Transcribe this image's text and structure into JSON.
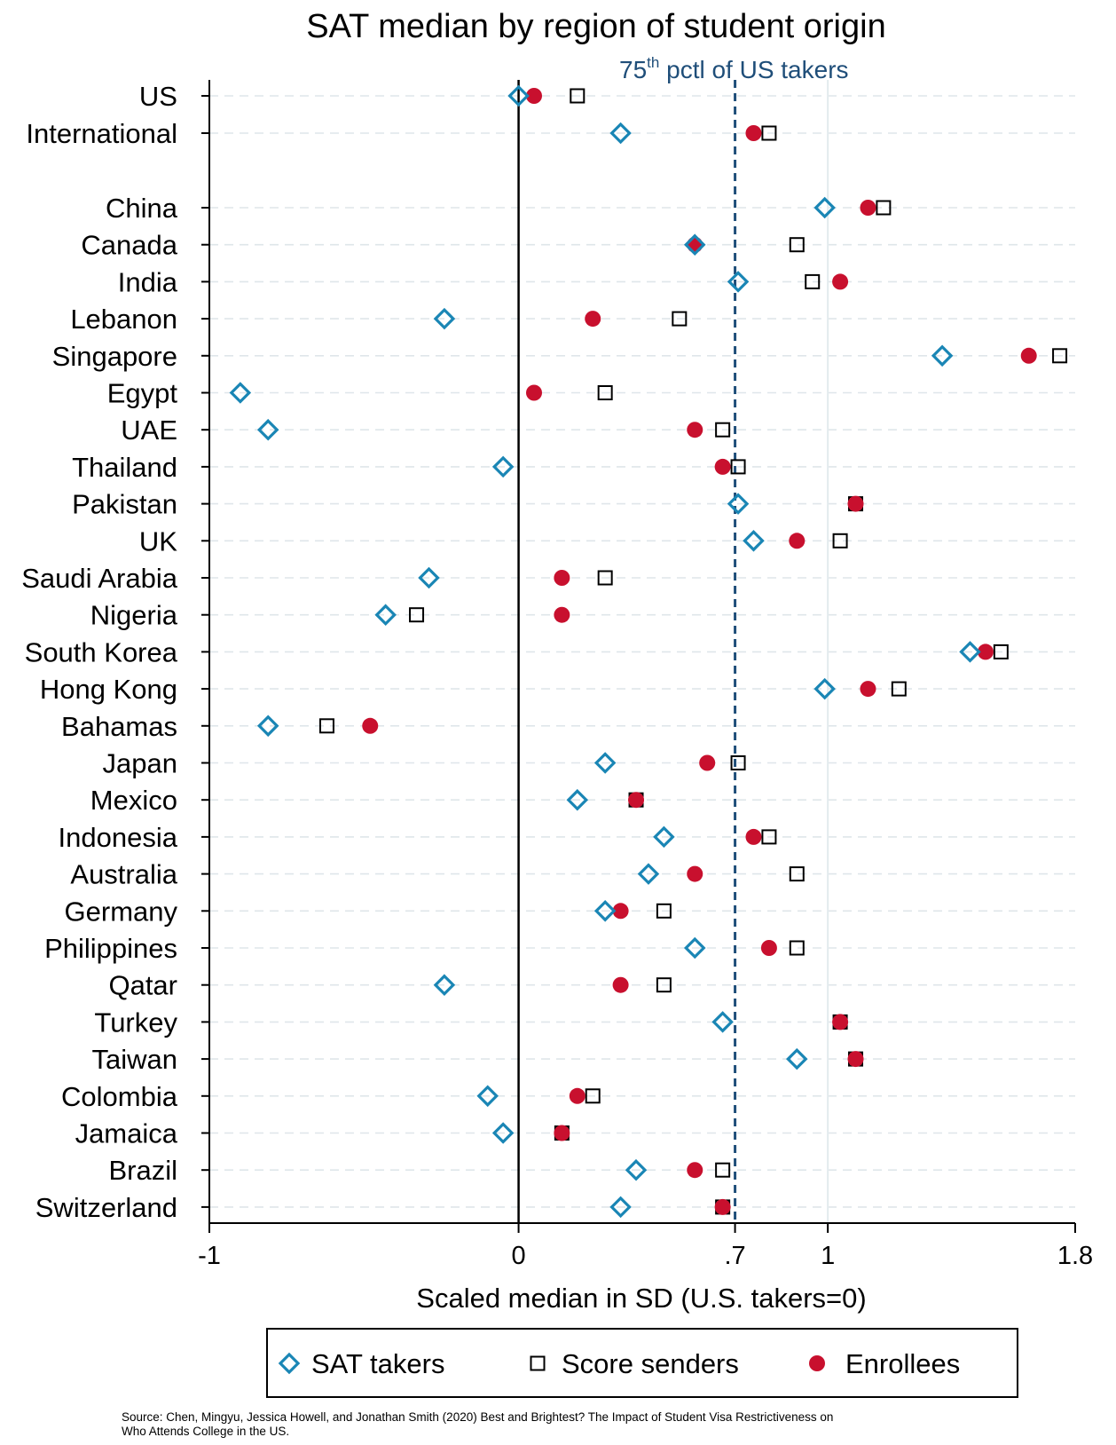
{
  "chart_data": {
    "type": "scatter",
    "orientation": "horizontal-dot-plot",
    "title": "SAT median by region of student origin",
    "xlabel": "Scaled median in SD (U.S. takers=0)",
    "xlim": [
      -1,
      1.8
    ],
    "x_ticks": [
      {
        "value": -1,
        "label": "-1"
      },
      {
        "value": 0,
        "label": "0"
      },
      {
        "value": 0.7,
        "label": ".7"
      },
      {
        "value": 1,
        "label": "1"
      },
      {
        "value": 1.8,
        "label": "1.8"
      }
    ],
    "reference_line": {
      "value": 0.7,
      "label_main": "75",
      "label_sup": "th",
      "label_rest": " pctl of US takers",
      "color": "#1f4e79"
    },
    "zero_line": 0,
    "colors": {
      "takers": "#1a86b5",
      "senders": "#000000",
      "enrollees": "#c8102e",
      "reference": "#1f4e79"
    },
    "categories": [
      "US",
      "International",
      "China",
      "Canada",
      "India",
      "Lebanon",
      "Singapore",
      "Egypt",
      "UAE",
      "Thailand",
      "Pakistan",
      "UK",
      "Saudi Arabia",
      "Nigeria",
      "South Korea",
      "Hong Kong",
      "Bahamas",
      "Japan",
      "Mexico",
      "Indonesia",
      "Australia",
      "Germany",
      "Philippines",
      "Qatar",
      "Turkey",
      "Taiwan",
      "Colombia",
      "Jamaica",
      "Brazil",
      "Switzerland"
    ],
    "series": [
      {
        "name": "SAT takers",
        "marker": "diamond",
        "values": [
          0,
          0.33,
          0.99,
          0.57,
          0.71,
          -0.24,
          1.37,
          -0.9,
          -0.81,
          -0.05,
          0.71,
          0.76,
          -0.29,
          -0.43,
          1.46,
          0.99,
          -0.81,
          0.28,
          0.19,
          0.47,
          0.42,
          0.28,
          0.57,
          -0.24,
          0.66,
          0.9,
          -0.1,
          -0.05,
          0.38,
          0.33
        ]
      },
      {
        "name": "Score senders",
        "marker": "square",
        "values": [
          0.19,
          0.81,
          1.18,
          0.9,
          0.95,
          0.52,
          1.75,
          0.28,
          0.66,
          0.71,
          1.09,
          1.04,
          0.28,
          -0.33,
          1.56,
          1.23,
          -0.62,
          0.71,
          0.38,
          0.81,
          0.9,
          0.47,
          0.9,
          0.47,
          1.04,
          1.09,
          0.24,
          0.14,
          0.66,
          0.66
        ]
      },
      {
        "name": "Enrollees",
        "marker": "circle",
        "values": [
          0.05,
          0.76,
          1.13,
          0.57,
          1.04,
          0.24,
          1.65,
          0.05,
          0.57,
          0.66,
          1.09,
          0.9,
          0.14,
          0.14,
          1.51,
          1.13,
          -0.48,
          0.61,
          0.38,
          0.76,
          0.57,
          0.33,
          0.81,
          0.33,
          1.04,
          1.09,
          0.19,
          0.14,
          0.57,
          0.66
        ]
      }
    ],
    "legend": {
      "placement": "bottom",
      "items": [
        "SAT takers",
        "Score senders",
        "Enrollees"
      ]
    },
    "source_note_line1": "Source: Chen, Mingyu, Jessica Howell, and Jonathan Smith (2020) Best and Brightest? The Impact of Student Visa Restrictiveness on",
    "source_note_line2": "Who Attends College in the US."
  }
}
